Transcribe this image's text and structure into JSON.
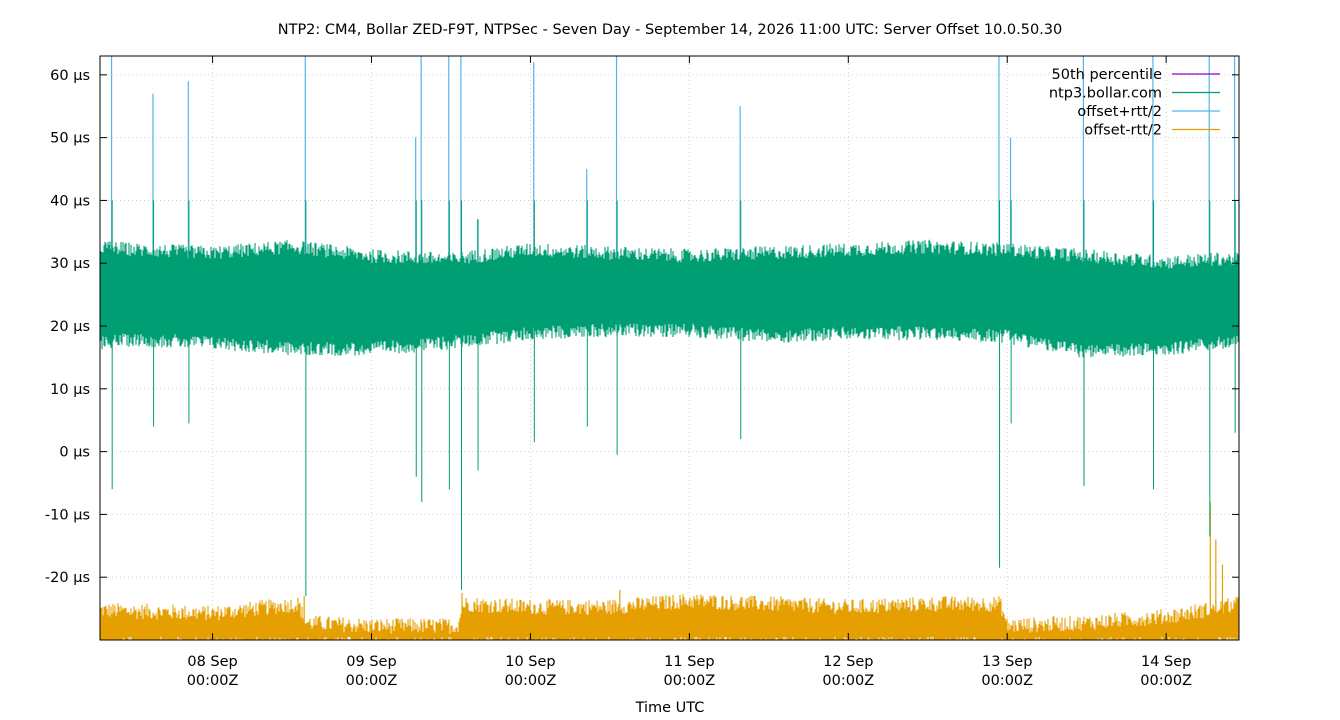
{
  "chart_data": {
    "type": "line",
    "title": "NTP2: CM4, Bollar ZED-F9T, NTPSec - Seven Day - September 14, 2026 11:00 UTC: Server Offset 10.0.50.30",
    "xlabel": "Time UTC",
    "ylabel": "",
    "ylim": [
      -30,
      63
    ],
    "xlim": [
      "2026-09-07T07:00Z",
      "2026-09-14T11:00Z"
    ],
    "grid": true,
    "legend_position": "top-right",
    "y_ticks": [
      {
        "value": 60,
        "label": "60 µs"
      },
      {
        "value": 50,
        "label": "50 µs"
      },
      {
        "value": 40,
        "label": "40 µs"
      },
      {
        "value": 30,
        "label": "30 µs"
      },
      {
        "value": 20,
        "label": "20 µs"
      },
      {
        "value": 10,
        "label": "10 µs"
      },
      {
        "value": 0,
        "label": "0 µs"
      },
      {
        "value": -10,
        "label": "-10 µs"
      },
      {
        "value": -20,
        "label": "-20 µs"
      }
    ],
    "x_ticks": [
      {
        "value": "2026-09-08T00:00Z",
        "line1": "08 Sep",
        "line2": "00:00Z"
      },
      {
        "value": "2026-09-09T00:00Z",
        "line1": "09 Sep",
        "line2": "00:00Z"
      },
      {
        "value": "2026-09-10T00:00Z",
        "line1": "10 Sep",
        "line2": "00:00Z"
      },
      {
        "value": "2026-09-11T00:00Z",
        "line1": "11 Sep",
        "line2": "00:00Z"
      },
      {
        "value": "2026-09-12T00:00Z",
        "line1": "12 Sep",
        "line2": "00:00Z"
      },
      {
        "value": "2026-09-13T00:00Z",
        "line1": "13 Sep",
        "line2": "00:00Z"
      },
      {
        "value": "2026-09-14T00:00Z",
        "line1": "14 Sep",
        "line2": "00:00Z"
      }
    ],
    "series": [
      {
        "name": "50th percentile",
        "color": "#9400d3",
        "kind": "line",
        "value": 25
      },
      {
        "name": "ntp3.bollar.com",
        "color": "#009e73",
        "kind": "band",
        "x": [
          "2026-09-07T07:00Z",
          "2026-09-07T12:00Z",
          "2026-09-08T00:00Z",
          "2026-09-08T12:00Z",
          "2026-09-09T00:00Z",
          "2026-09-09T12:00Z",
          "2026-09-10T00:00Z",
          "2026-09-10T12:00Z",
          "2026-09-11T00:00Z",
          "2026-09-11T12:00Z",
          "2026-09-12T00:00Z",
          "2026-09-12T12:00Z",
          "2026-09-13T00:00Z",
          "2026-09-13T12:00Z",
          "2026-09-14T00:00Z",
          "2026-09-14T08:00Z",
          "2026-09-14T11:00Z"
        ],
        "upper": [
          32,
          31.5,
          31,
          32,
          30.5,
          30,
          31.5,
          31,
          30.5,
          31,
          31.5,
          32,
          31.5,
          30.5,
          29.5,
          30,
          30
        ],
        "lower": [
          18,
          18.5,
          18,
          17,
          17,
          18,
          19.5,
          20,
          20,
          19,
          19.5,
          19.5,
          19,
          16.5,
          17,
          18,
          18
        ],
        "spikes": [
          {
            "x": "2026-09-07T08:45Z",
            "min": -6,
            "max": 63
          },
          {
            "x": "2026-09-07T15:00Z",
            "min": 4,
            "max": 57
          },
          {
            "x": "2026-09-07T20:20Z",
            "min": 4.5,
            "max": 59
          },
          {
            "x": "2026-09-08T14:00Z",
            "min": -23,
            "max": 63
          },
          {
            "x": "2026-09-09T06:40Z",
            "min": -4,
            "max": 50
          },
          {
            "x": "2026-09-09T07:30Z",
            "min": -8,
            "max": 63
          },
          {
            "x": "2026-09-09T11:40Z",
            "min": -6,
            "max": 63
          },
          {
            "x": "2026-09-09T13:30Z",
            "min": -22,
            "max": 63
          },
          {
            "x": "2026-09-09T16:00Z",
            "min": -3,
            "max": 37
          },
          {
            "x": "2026-09-10T00:30Z",
            "min": 1.5,
            "max": 62
          },
          {
            "x": "2026-09-10T08:30Z",
            "min": 4,
            "max": 45
          },
          {
            "x": "2026-09-10T13:00Z",
            "min": -0.5,
            "max": 63
          },
          {
            "x": "2026-09-11T07:40Z",
            "min": 2,
            "max": 55
          },
          {
            "x": "2026-09-12T22:45Z",
            "min": -18.5,
            "max": 63
          },
          {
            "x": "2026-09-13T00:30Z",
            "min": 4.5,
            "max": 50
          },
          {
            "x": "2026-09-13T11:30Z",
            "min": -5.5,
            "max": 63
          },
          {
            "x": "2026-09-13T22:00Z",
            "min": -6,
            "max": 63
          },
          {
            "x": "2026-09-14T06:30Z",
            "min": -13.5,
            "max": 63
          },
          {
            "x": "2026-09-14T10:20Z",
            "min": 3,
            "max": 63
          }
        ]
      },
      {
        "name": "offset+rtt/2",
        "color": "#56b4e9",
        "kind": "line"
      },
      {
        "name": "offset-rtt/2",
        "color": "#e69f00",
        "kind": "band",
        "x": [
          "2026-09-07T07:00Z",
          "2026-09-08T00:00Z",
          "2026-09-08T13:00Z",
          "2026-09-08T14:00Z",
          "2026-09-09T00:00Z",
          "2026-09-09T13:00Z",
          "2026-09-09T14:00Z",
          "2026-09-10T00:00Z",
          "2026-09-10T12:00Z",
          "2026-09-11T00:00Z",
          "2026-09-11T12:00Z",
          "2026-09-12T00:00Z",
          "2026-09-12T12:00Z",
          "2026-09-12T23:00Z",
          "2026-09-13T00:00Z",
          "2026-09-13T12:00Z",
          "2026-09-14T00:00Z",
          "2026-09-14T06:00Z",
          "2026-09-14T11:00Z"
        ],
        "upper": [
          -26,
          -26.5,
          -25,
          -28,
          -28.5,
          -28.5,
          -25,
          -25.5,
          -25.5,
          -24.5,
          -25,
          -25.5,
          -25,
          -25,
          -28.5,
          -28,
          -27,
          -26,
          -25
        ],
        "lower": [
          -30,
          -30,
          -30,
          -30,
          -30,
          -30,
          -30,
          -30,
          -30,
          -30,
          -30,
          -30,
          -30,
          -30,
          -30,
          -30,
          -30,
          -30,
          -30
        ],
        "spikes": [
          {
            "x": "2026-09-08T13:50Z",
            "min": -30,
            "max": -23
          },
          {
            "x": "2026-09-09T13:40Z",
            "min": -30,
            "max": -22.5
          },
          {
            "x": "2026-09-10T13:30Z",
            "min": -30,
            "max": -22
          },
          {
            "x": "2026-09-14T06:40Z",
            "min": -30,
            "max": -8
          },
          {
            "x": "2026-09-14T07:30Z",
            "min": -30,
            "max": -14
          },
          {
            "x": "2026-09-14T08:30Z",
            "min": -30,
            "max": -18
          }
        ]
      }
    ]
  }
}
